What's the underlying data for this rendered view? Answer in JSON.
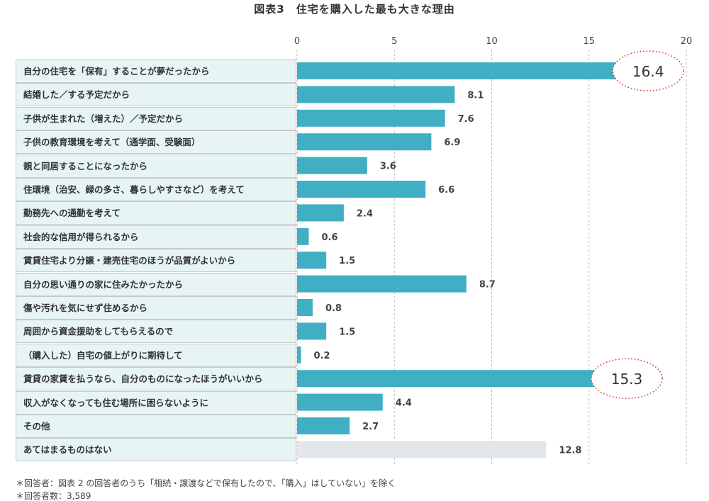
{
  "chart_data": {
    "type": "bar",
    "orientation": "horizontal",
    "title": "図表3　住宅を購入した最も大きな理由",
    "xlim": [
      0,
      20
    ],
    "xticks": [
      0,
      5,
      10,
      15,
      20
    ],
    "grid": "dashed vertical",
    "categories": [
      "自分の住宅を「保有」することが夢だったから",
      "結婚した／する予定だから",
      "子供が生まれた（増えた）／予定だから",
      "子供の教育環境を考えて（通学面、受験面）",
      "親と同居することになったから",
      "住環境（治安、緑の多さ、暮らしやすさなど）を考えて",
      "勤務先への通勤を考えて",
      "社会的な信用が得られるから",
      "賃貸住宅より分譲・建売住宅のほうが品質がよいから",
      "自分の思い通りの家に住みたかったから",
      "傷や汚れを気にせず住めるから",
      "周囲から資金援助をしてもらえるので",
      "（購入した）自宅の値上がりに期待して",
      "賃貸の家賃を払うなら、自分のものになったほうがいいから",
      "収入がなくなっても住む場所に困らないように",
      "その他",
      "あてはまるものはない"
    ],
    "values": [
      16.4,
      8.1,
      7.6,
      6.9,
      3.6,
      6.6,
      2.4,
      0.6,
      1.5,
      8.7,
      0.8,
      1.5,
      0.2,
      15.3,
      4.4,
      2.7,
      12.8
    ],
    "value_labels": [
      "16.4",
      "8.1",
      "7.6",
      "6.9",
      "3.6",
      "6.6",
      "2.4",
      "0.6",
      "1.5",
      "8.7",
      "0.8",
      "1.5",
      "0.2",
      "15.3",
      "4.4",
      "2.7",
      "12.8"
    ],
    "highlighted": [
      0,
      13
    ],
    "colors": {
      "bar": "#40afc4",
      "none_bar": "#e3e7ea",
      "highlight": "#e0322e",
      "grid": "#bbbbbb"
    }
  },
  "notes": [
    "＊回答者：図表 2 の回答者のうち「相続・譲渡などで保有したので、「購入」はしていない」を除く",
    "＊回答者数：3,589"
  ]
}
